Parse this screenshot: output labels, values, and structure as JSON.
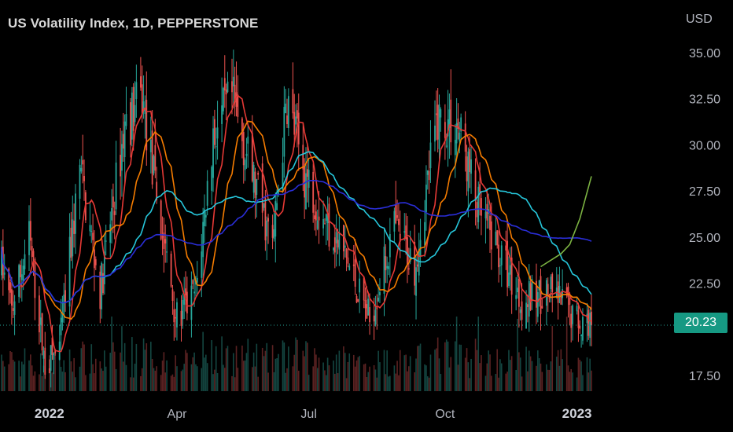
{
  "header": {
    "title": "US Volatility Index, 1D, PEPPERSTONE",
    "currency": "USD",
    "last_price": "20.23"
  },
  "colors": {
    "background": "#000000",
    "up": "#26a69a",
    "down": "#ef5350",
    "ma_short": "#e53935",
    "ma_medium": "#f57c00",
    "ma_long_teal": "#26c6da",
    "ma_longest": "#2a2ed8",
    "projection": "#7cb342",
    "price_line": "#26a69a",
    "price_tag": "#169983"
  },
  "chart_data": {
    "type": "candlestick",
    "title": "US Volatility Index, 1D, PEPPERSTONE",
    "currency": "USD",
    "y_ticks": [
      "35.00",
      "32.50",
      "30.00",
      "27.50",
      "25.00",
      "22.50",
      "17.50"
    ],
    "ylim": [
      16.5,
      36.0
    ],
    "x_ticks": [
      {
        "label": "2022",
        "bold": true
      },
      {
        "label": "Apr",
        "bold": false
      },
      {
        "label": "Jul",
        "bold": false
      },
      {
        "label": "Oct",
        "bold": false
      },
      {
        "label": "2023",
        "bold": true
      }
    ],
    "last_price": 20.23,
    "anchors": [
      [
        "2021-12-01",
        23.5
      ],
      [
        "2021-12-08",
        21.0
      ],
      [
        "2021-12-20",
        25.0
      ],
      [
        "2021-12-31",
        18.0
      ],
      [
        "2022-01-10",
        19.0
      ],
      [
        "2022-01-24",
        28.8
      ],
      [
        "2022-02-07",
        22.0
      ],
      [
        "2022-02-24",
        31.0
      ],
      [
        "2022-03-08",
        32.5
      ],
      [
        "2022-03-20",
        26.0
      ],
      [
        "2022-04-01",
        20.5
      ],
      [
        "2022-04-14",
        22.0
      ],
      [
        "2022-04-26",
        30.5
      ],
      [
        "2022-05-09",
        32.5
      ],
      [
        "2022-05-24",
        28.0
      ],
      [
        "2022-06-06",
        24.5
      ],
      [
        "2022-06-16",
        32.5
      ],
      [
        "2022-06-28",
        28.5
      ],
      [
        "2022-07-12",
        26.0
      ],
      [
        "2022-07-26",
        24.0
      ],
      [
        "2022-08-12",
        20.5
      ],
      [
        "2022-08-29",
        25.5
      ],
      [
        "2022-09-12",
        23.5
      ],
      [
        "2022-09-28",
        31.5
      ],
      [
        "2022-10-12",
        31.0
      ],
      [
        "2022-10-26",
        26.5
      ],
      [
        "2022-11-10",
        24.0
      ],
      [
        "2022-11-25",
        21.5
      ],
      [
        "2022-12-12",
        22.0
      ],
      [
        "2022-12-22",
        21.5
      ],
      [
        "2023-01-04",
        20.5
      ],
      [
        "2023-01-12",
        20.23
      ]
    ],
    "moving_averages": [
      {
        "period": 10,
        "color": "#e53935"
      },
      {
        "period": 20,
        "color": "#f57c00"
      },
      {
        "period": 50,
        "color": "#26c6da"
      },
      {
        "period": 100,
        "color": "#2a2ed8"
      }
    ],
    "projection": [
      [
        "2022-12-08",
        23.4
      ],
      [
        "2022-12-22",
        24.1
      ],
      [
        "2022-12-28",
        24.6
      ],
      [
        "2023-01-04",
        26.0
      ],
      [
        "2023-01-12",
        28.3
      ]
    ]
  }
}
